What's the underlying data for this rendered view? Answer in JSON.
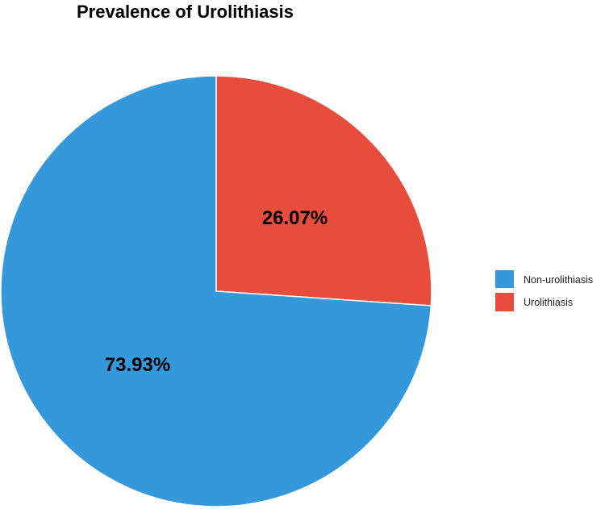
{
  "chart_data": {
    "type": "pie",
    "title": "Prevalence of Urolithiasis",
    "categories": [
      "Non-urolithiasis",
      "Urolithiasis"
    ],
    "values": [
      73.93,
      26.07
    ],
    "labels": [
      "73.93%",
      "26.07%"
    ],
    "colors": [
      "#3498db",
      "#e74c3c"
    ],
    "legend": {
      "position": "right",
      "items": [
        "Non-urolithiasis",
        "Urolithiasis"
      ]
    }
  }
}
